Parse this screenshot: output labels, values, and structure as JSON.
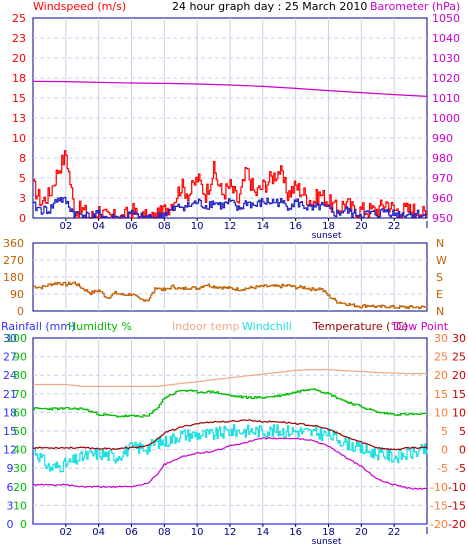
{
  "title": "24 hour graph day : 25 March 2010",
  "colors": {
    "wind": "#ff0000",
    "gust": "#ff0000",
    "avgwind": "#2020c0",
    "baro": "#cc00cc",
    "dir": "#c06000",
    "rain": "#3030ff",
    "humidity": "#00bb00",
    "indoor": "#f0a888",
    "windchill": "#20e0e0",
    "temp": "#990000",
    "dew": "#cc00cc",
    "axis": "#000080",
    "grid": "#c8d0e8"
  },
  "x_ticks": [
    "02",
    "04",
    "06",
    "08",
    "10",
    "12",
    "14",
    "16",
    "18",
    "20",
    "22"
  ],
  "sunset_label": "sunset",
  "chart_data": [
    {
      "type": "line",
      "name": "wind-baro",
      "left_label": "Windspeed (m/s)",
      "right_label": "Barometer (hPa)",
      "left_ticks": [
        "0",
        "3",
        "5",
        "8",
        "10",
        "13",
        "15",
        "18",
        "20",
        "23",
        "25"
      ],
      "right_ticks": [
        "950",
        "960",
        "970",
        "980",
        "990",
        "1000",
        "1010",
        "1020",
        "1030",
        "1040",
        "1050"
      ],
      "left_range": [
        0,
        25
      ],
      "right_range": [
        950,
        1050
      ],
      "x_range": [
        0,
        24
      ],
      "baro_x": [
        0,
        2,
        4,
        6,
        8,
        10,
        12,
        14,
        16,
        18,
        20,
        22,
        24
      ],
      "baro": [
        1018.3,
        1018.2,
        1017.8,
        1017.5,
        1017.3,
        1017.0,
        1016.5,
        1015.8,
        1014.8,
        1013.7,
        1012.7,
        1011.7,
        1010.8
      ],
      "wind_hours": [
        0,
        0.5,
        1,
        1.5,
        2,
        2.5,
        3,
        3.5,
        4,
        4.5,
        5,
        5.5,
        6,
        6.5,
        7,
        7.5,
        8,
        8.5,
        9,
        9.5,
        10,
        10.5,
        11,
        11.5,
        12,
        12.5,
        13,
        13.5,
        14,
        14.5,
        15,
        15.5,
        16,
        16.5,
        17,
        17.5,
        18,
        18.5,
        19,
        19.5,
        20,
        20.5,
        21,
        21.5,
        22,
        22.5,
        23,
        23.5,
        24
      ],
      "gust": [
        4,
        2,
        3,
        6,
        8,
        1,
        1,
        0,
        1,
        0,
        0,
        0,
        1,
        0,
        0,
        0,
        1,
        2,
        4,
        3,
        5,
        3,
        6,
        3,
        4,
        2,
        6,
        3,
        4,
        5,
        6,
        3,
        4,
        3,
        2,
        3,
        2,
        1,
        2,
        1,
        1,
        1,
        1,
        2,
        1,
        1,
        1,
        1,
        0
      ],
      "avg": [
        1.5,
        1,
        1,
        2.5,
        2,
        0.5,
        0.5,
        0,
        0.5,
        0,
        0,
        0,
        0.5,
        0,
        0,
        0,
        0.5,
        1,
        1.5,
        1.5,
        2,
        1.5,
        2,
        1.5,
        2,
        1,
        2,
        1.5,
        2,
        2,
        2,
        1.5,
        2,
        1.5,
        1,
        1.5,
        1,
        0.5,
        1,
        0.5,
        0.5,
        0.5,
        0.5,
        1,
        0.5,
        0.5,
        0.5,
        0.5,
        0
      ]
    },
    {
      "type": "line",
      "name": "wind-direction",
      "left_ticks": [
        "0",
        "90",
        "180",
        "270",
        "360"
      ],
      "right_ticks": [
        "N",
        "E",
        "S",
        "W",
        "N"
      ],
      "range": [
        0,
        360
      ],
      "x": [
        0,
        0.5,
        1,
        1.5,
        2,
        2.5,
        3,
        3.5,
        4,
        4.5,
        5,
        5.5,
        6,
        6.5,
        7,
        7.5,
        8,
        8.5,
        9,
        9.5,
        10,
        10.5,
        11,
        11.5,
        12,
        12.5,
        13,
        13.5,
        14,
        14.5,
        15,
        15.5,
        16,
        16.5,
        17,
        17.5,
        18,
        18.5,
        19,
        19.5,
        20,
        20.5,
        21,
        21.5,
        22,
        22.5,
        23,
        23.5,
        24
      ],
      "y": [
        130,
        125,
        140,
        150,
        140,
        150,
        120,
        95,
        110,
        70,
        95,
        85,
        90,
        60,
        60,
        125,
        110,
        130,
        115,
        125,
        120,
        140,
        130,
        125,
        120,
        115,
        120,
        125,
        130,
        130,
        130,
        135,
        125,
        125,
        115,
        120,
        80,
        50,
        40,
        30,
        25,
        30,
        20,
        25,
        20,
        20,
        20,
        20,
        20
      ]
    },
    {
      "type": "line",
      "name": "temperature-humidity",
      "top_labels": [
        "Rainfall (mm)",
        "Humidity %",
        "Indoor temp",
        "Windchill",
        "Temperature (°C)",
        "Dew Point"
      ],
      "rain_ticks": [
        "0",
        "3",
        "6",
        "9",
        "12",
        "15",
        "18",
        "21",
        "24",
        "27",
        "30"
      ],
      "hum_ticks": [
        "0",
        "10",
        "20",
        "30",
        "40",
        "50",
        "60",
        "70",
        "80",
        "90",
        "100"
      ],
      "temp_ticks_inner": [
        "-20",
        "-15",
        "-10",
        "-5",
        "0",
        "5",
        "10",
        "15",
        "20",
        "25",
        "30"
      ],
      "temp_ticks_outer": [
        "-20",
        "-15",
        "-10",
        "-5",
        "0",
        "5",
        "10",
        "15",
        "20",
        "25",
        "30"
      ],
      "temp_range": [
        -20,
        30
      ],
      "x": [
        0,
        1,
        2,
        3,
        4,
        5,
        6,
        7,
        7.5,
        8,
        9,
        10,
        11,
        12,
        13,
        14,
        15,
        16,
        17,
        18,
        19,
        20,
        21,
        22,
        23,
        24
      ],
      "temperature": [
        0.5,
        0.5,
        0.5,
        0.5,
        0.3,
        0.2,
        0.5,
        1.0,
        2.5,
        4.5,
        6.0,
        7.0,
        7.5,
        7.5,
        8.0,
        7.5,
        7.5,
        7.0,
        6.5,
        5.5,
        3.5,
        2.0,
        0.5,
        0.0,
        0.5,
        0.5
      ],
      "dew_point": [
        -9.5,
        -9.5,
        -9.5,
        -10,
        -10,
        -10,
        -10,
        -9,
        -7,
        -4,
        -2,
        -1,
        -0.5,
        1,
        2,
        3,
        3,
        3,
        2.5,
        1,
        -2,
        -4.5,
        -8,
        -9.5,
        -10.5,
        -10.5
      ],
      "indoor_temp": [
        17.5,
        17.5,
        17.5,
        17.0,
        17.0,
        17.0,
        17.0,
        17.0,
        17.0,
        17.2,
        17.8,
        18.2,
        18.8,
        19.3,
        19.8,
        20.3,
        20.8,
        21.3,
        21.5,
        21.5,
        21.2,
        21.0,
        20.7,
        20.6,
        20.4,
        20.5
      ],
      "windchill": [
        0.3,
        -5,
        -4,
        -2,
        -1,
        -2,
        0.5,
        0.5,
        2,
        2,
        4,
        4,
        4,
        5,
        5,
        5,
        5,
        5,
        4.5,
        4,
        2,
        0,
        -1,
        -2,
        -1,
        0
      ],
      "humidity": [
        62,
        62,
        62,
        62,
        59,
        58,
        58,
        58,
        62,
        68,
        72,
        71,
        71,
        69,
        68,
        68,
        69,
        71,
        73,
        70,
        66,
        63,
        60,
        59,
        59,
        59
      ],
      "rain": [
        0,
        0,
        0,
        0,
        0,
        0,
        0,
        0,
        0,
        0,
        0,
        0,
        0,
        0,
        0,
        0,
        0,
        0,
        0,
        0,
        0,
        0,
        0,
        0,
        0,
        0
      ]
    }
  ]
}
